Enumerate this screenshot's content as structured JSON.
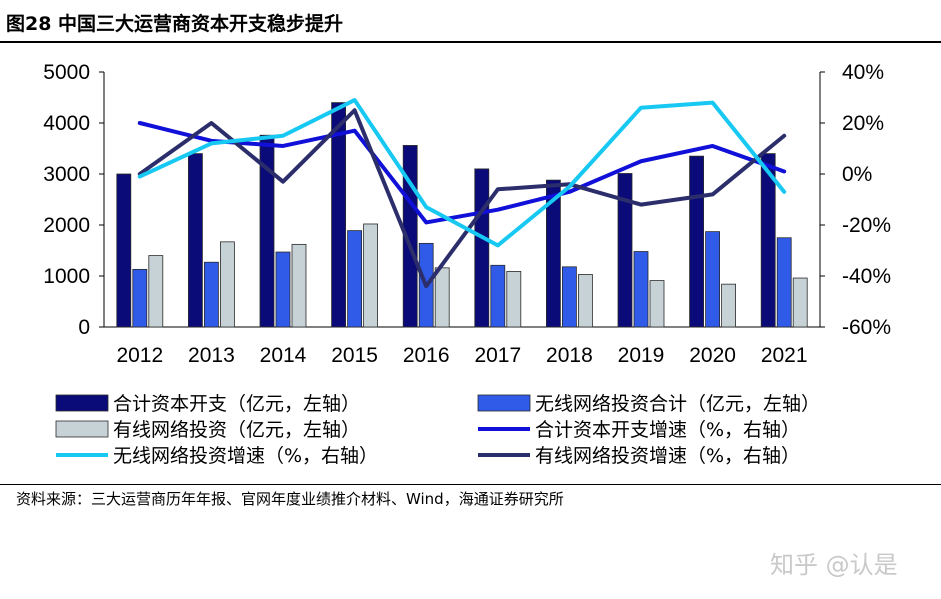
{
  "figure": {
    "title": "图28 中国三大运营商资本开支稳步提升",
    "source": "资料来源：三大运营商历年年报、官网年度业绩推介材料、Wind，海通证券研究所",
    "watermark": "知乎 @认是"
  },
  "chart_data": {
    "type": "bar",
    "categories": [
      "2012",
      "2013",
      "2014",
      "2015",
      "2016",
      "2017",
      "2018",
      "2019",
      "2020",
      "2021"
    ],
    "bar_series": [
      {
        "name": "合计资本开支（亿元，左轴）",
        "color": "#0a0a78",
        "values": [
          3000,
          3400,
          3760,
          4400,
          3560,
          3100,
          2880,
          3010,
          3350,
          3400
        ]
      },
      {
        "name": "无线网络投资合计（亿元，左轴）",
        "color": "#2f5be8",
        "values": [
          1130,
          1270,
          1470,
          1890,
          1640,
          1210,
          1180,
          1480,
          1870,
          1750
        ]
      },
      {
        "name": "有线网络投资（亿元，左轴）",
        "color": "#c7d2d6",
        "values": [
          1400,
          1670,
          1620,
          2020,
          1160,
          1090,
          1030,
          910,
          840,
          960
        ]
      }
    ],
    "line_series": [
      {
        "name": "合计资本开支增速（%，右轴）",
        "color": "#1010d8",
        "values": [
          20,
          13,
          11,
          17,
          -19,
          -14,
          -7,
          5,
          11,
          1
        ]
      },
      {
        "name": "无线网络投资增速（%，右轴）",
        "color": "#17c8f2",
        "values": [
          -1,
          12,
          15,
          29,
          -13,
          -28,
          -5,
          26,
          28,
          -7
        ]
      },
      {
        "name": "有线网络投资增速（%，右轴）",
        "color": "#2b2e6b",
        "values": [
          0,
          20,
          -3,
          25,
          -44,
          -6,
          -4,
          -12,
          -8,
          15
        ]
      }
    ],
    "y_left": {
      "min": 0,
      "max": 5000,
      "ticks": [
        "0",
        "1000",
        "2000",
        "3000",
        "4000",
        "5000"
      ]
    },
    "y_right": {
      "min": -60,
      "max": 40,
      "ticks": [
        "-60%",
        "-40%",
        "-20%",
        "0%",
        "20%",
        "40%"
      ]
    },
    "legend": "bottom, three rows of two"
  }
}
